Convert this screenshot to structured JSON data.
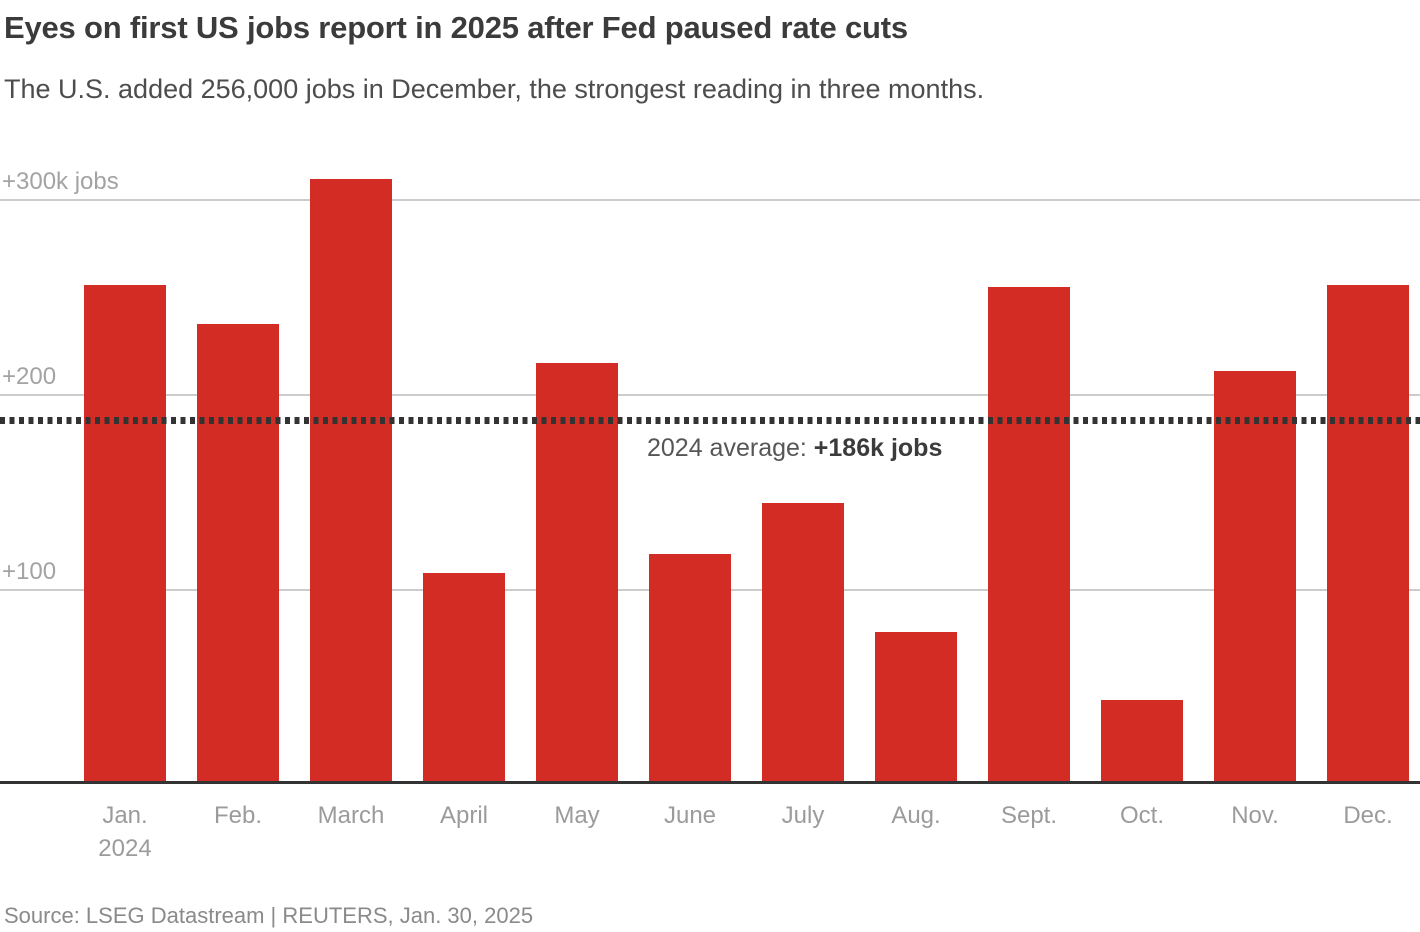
{
  "header": {
    "title": "Eyes on first US jobs report in 2025 after Fed paused rate cuts",
    "subtitle": "The U.S. added 256,000 jobs in December, the strongest reading in three months."
  },
  "chart_data": {
    "type": "bar",
    "title": "Eyes on first US jobs report in 2025 after Fed paused rate cuts",
    "subtitle": "The U.S. added 256,000 jobs in December, the strongest reading in three months.",
    "unit": "thousands of jobs added per month",
    "categories": [
      "Jan.",
      "Feb.",
      "March",
      "April",
      "May",
      "June",
      "July",
      "Aug.",
      "Sept.",
      "Oct.",
      "Nov.",
      "Dec."
    ],
    "x_first_tick_second_line": "2024",
    "values": [
      256,
      236,
      310,
      108,
      216,
      118,
      144,
      78,
      255,
      43,
      212,
      256
    ],
    "xlabel": "",
    "ylabel": "",
    "ylim": [
      0,
      320
    ],
    "y_ticks": [
      {
        "value": 300,
        "label": "+300k jobs"
      },
      {
        "value": 200,
        "label": "+200"
      },
      {
        "value": 100,
        "label": "+100"
      }
    ],
    "grid": "horizontal",
    "legend_position": "none",
    "average_line": {
      "value": 186,
      "style": "dotted",
      "label_prefix": "2024 average: ",
      "label_value": "+186k jobs"
    },
    "colors": {
      "bar": "#d32c25",
      "gridline": "#cccccc",
      "axis_line": "#333333",
      "average_line": "#333333",
      "tick_text": "#9b9b9b",
      "title_text": "#3b3b3b",
      "subtitle_text": "#4d4d4d",
      "source_text": "#8a8a8a"
    }
  },
  "footer": {
    "source": "Source: LSEG Datastream | REUTERS, Jan. 30, 2025"
  }
}
